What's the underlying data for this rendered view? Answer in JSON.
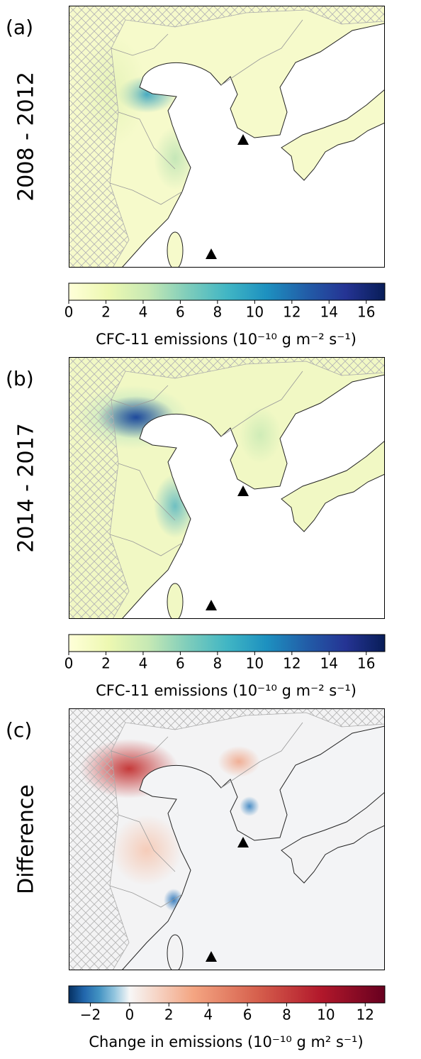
{
  "panels": [
    {
      "label": "(a)",
      "period": "2008 - 2012",
      "colorbar": {
        "label": "CFC-11 emissions (10⁻¹⁰ g m⁻² s⁻¹)",
        "lim": [
          0,
          17
        ],
        "ticks": [
          0,
          2,
          4,
          6,
          8,
          10,
          12,
          14,
          16
        ],
        "colors": [
          "#ffffd9",
          "#edf8b1",
          "#c7e9b4",
          "#7fcdbb",
          "#41b6c4",
          "#1d91c0",
          "#225ea8",
          "#253494",
          "#081d58"
        ]
      }
    },
    {
      "label": "(b)",
      "period": "2014 - 2017",
      "colorbar": {
        "label": "CFC-11 emissions (10⁻¹⁰ g m⁻² s⁻¹)",
        "lim": [
          0,
          17
        ],
        "ticks": [
          0,
          2,
          4,
          6,
          8,
          10,
          12,
          14,
          16
        ],
        "colors": [
          "#ffffd9",
          "#edf8b1",
          "#c7e9b4",
          "#7fcdbb",
          "#41b6c4",
          "#1d91c0",
          "#225ea8",
          "#253494",
          "#081d58"
        ]
      }
    },
    {
      "label": "(c)",
      "period": "Difference",
      "colorbar": {
        "label": "Change in emissions (10⁻¹⁰ g m² s⁻¹)",
        "lim": [
          -3.1,
          13
        ],
        "ticks": [
          {
            "value": -2,
            "label": "−2"
          },
          0,
          2,
          4,
          6,
          8,
          10,
          12
        ],
        "center": 0,
        "colors": [
          "#053061",
          "#2166ac",
          "#4393c3",
          "#92c5de",
          "#f7f7f7",
          "#f4a582",
          "#d6604d",
          "#b2182b",
          "#67001f"
        ]
      }
    }
  ]
}
